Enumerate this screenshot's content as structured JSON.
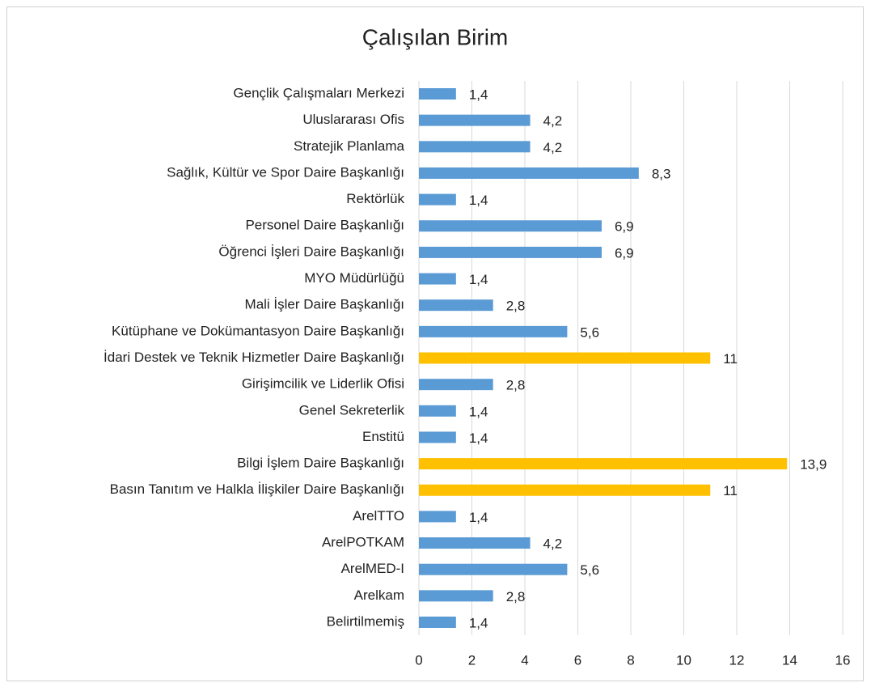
{
  "chart_data": {
    "type": "barh",
    "title": "Çalışılan Birim",
    "categories": [
      "Gençlik Çalışmaları Merkezi",
      "Uluslararası Ofis",
      "Stratejik Planlama",
      "Sağlık, Kültür ve Spor Daire Başkanlığı",
      "Rektörlük",
      "Personel Daire Başkanlığı",
      "Öğrenci İşleri Daire Başkanlığı",
      "MYO Müdürlüğü",
      "Mali İşler Daire Başkanlığı",
      "Kütüphane ve Dokümantasyon Daire Başkanlığı",
      "İdari Destek ve Teknik Hizmetler Daire Başkanlığı",
      "Girişimcilik ve Liderlik Ofisi",
      "Genel Sekreterlik",
      "Enstitü",
      "Bilgi İşlem Daire Başkanlığı",
      "Basın Tanıtım ve Halkla İlişkiler Daire Başkanlığı",
      "ArelTTO",
      "ArelPOTKAM",
      "ArelMED-I",
      "Arelkam",
      "Belirtilmemiş"
    ],
    "values": [
      1.4,
      4.2,
      4.2,
      8.3,
      1.4,
      6.9,
      6.9,
      1.4,
      2.8,
      5.6,
      11,
      2.8,
      1.4,
      1.4,
      13.9,
      11,
      1.4,
      4.2,
      5.6,
      2.8,
      1.4
    ],
    "value_labels": [
      "1,4",
      "4,2",
      "4,2",
      "8,3",
      "1,4",
      "6,9",
      "6,9",
      "1,4",
      "2,8",
      "5,6",
      "11",
      "2,8",
      "1,4",
      "1,4",
      "13,9",
      "11",
      "1,4",
      "4,2",
      "5,6",
      "2,8",
      "1,4"
    ],
    "colors": [
      "#5b9bd5",
      "#5b9bd5",
      "#5b9bd5",
      "#5b9bd5",
      "#5b9bd5",
      "#5b9bd5",
      "#5b9bd5",
      "#5b9bd5",
      "#5b9bd5",
      "#5b9bd5",
      "#ffc000",
      "#5b9bd5",
      "#5b9bd5",
      "#5b9bd5",
      "#ffc000",
      "#ffc000",
      "#5b9bd5",
      "#5b9bd5",
      "#5b9bd5",
      "#5b9bd5",
      "#5b9bd5"
    ],
    "xlim": [
      0,
      16
    ],
    "xticks": [
      0,
      2,
      4,
      6,
      8,
      10,
      12,
      14,
      16
    ],
    "grid": true
  }
}
